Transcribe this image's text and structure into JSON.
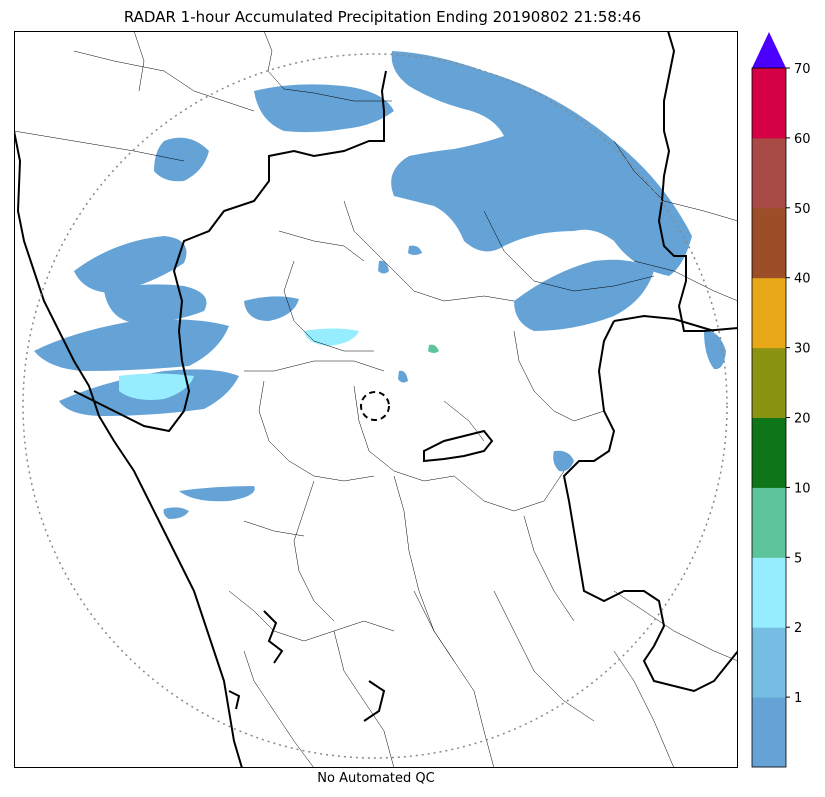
{
  "title": "RADAR 1-hour Accumulated Precipitation Ending 20190802 21:58:46",
  "footer": "No Automated QC",
  "colorbar": {
    "extend": "max",
    "extend_color": "#4b00ff",
    "bins": [
      {
        "color": "#65a3d6"
      },
      {
        "color": "#75bde2"
      },
      {
        "color": "#96edff"
      },
      {
        "color": "#5ec49b"
      },
      {
        "color": "#0e7518"
      },
      {
        "color": "#8b9412"
      },
      {
        "color": "#e8a817"
      },
      {
        "color": "#9c4e29"
      },
      {
        "color": "#a84a45"
      },
      {
        "color": "#d40043"
      }
    ],
    "tick_labels": [
      "1",
      "2",
      "5",
      "10",
      "20",
      "30",
      "40",
      "50",
      "60",
      "70"
    ]
  },
  "map": {
    "range_ring_color": "#888888",
    "boundary_color": "#000000",
    "rain_colors": [
      "#65a3d6",
      "#96edff",
      "#5ec49b"
    ]
  }
}
